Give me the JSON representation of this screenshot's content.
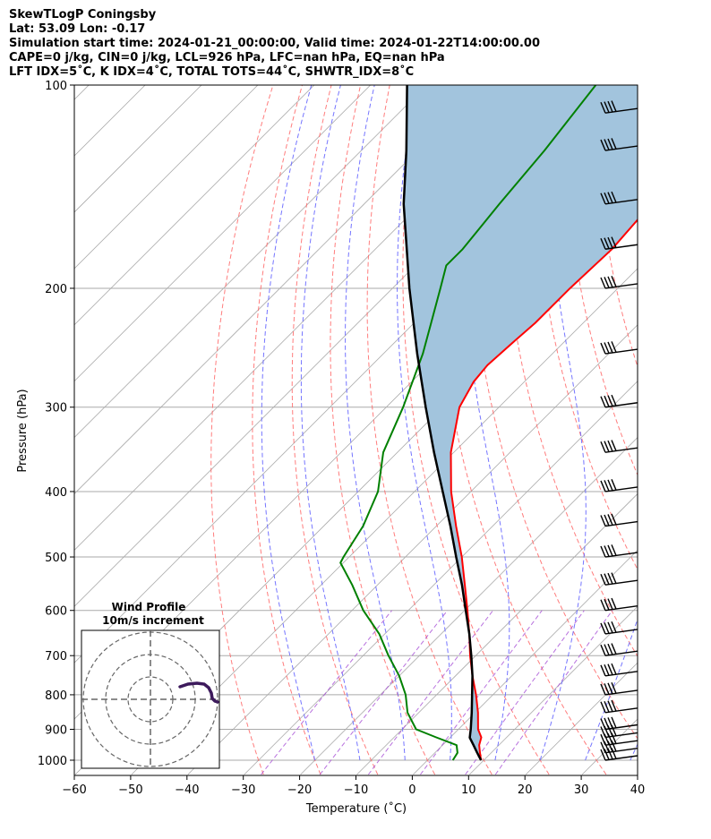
{
  "header": {
    "line1": "SkewTLogP Coningsby",
    "line2": "Lat: 53.09   Lon: -0.17",
    "line3": "Simulation start time: 2024-01-21_00:00:00, Valid time: 2024-01-22T14:00:00.00",
    "line4": "CAPE=0 j/kg, CIN=0 j/kg, LCL=926 hPa, LFC=nan hPa, EQ=nan hPa",
    "line5": "LFT IDX=5˚C, K IDX=4˚C, TOTAL TOTS=44˚C, SHWTR_IDX=8˚C"
  },
  "colors": {
    "temperature": "#ff0000",
    "dewpoint": "#008000",
    "parcel": "#000000",
    "cape_fill": "#a2c4dd",
    "dry_adiabat": "#ff6666",
    "moist_adiabat": "#6666ff",
    "mixing_ratio": "#a64dd6",
    "isotherm": "#aaaaaa",
    "hodograph": "#3d1a5c"
  },
  "chart_data": {
    "type": "skew-t log-p",
    "xlabel": "Temperature (˚C)",
    "ylabel": "Pressure (hPa)",
    "xlim": [
      -60,
      40
    ],
    "ylim": [
      1050,
      100
    ],
    "x_ticks": [
      "−60",
      "−50",
      "−40",
      "−30",
      "−20",
      "−10",
      "0",
      "10",
      "20",
      "30",
      "40"
    ],
    "y_ticks": [
      "100",
      "200",
      "300",
      "400",
      "500",
      "600",
      "700",
      "800",
      "900",
      "1000"
    ],
    "grid": true,
    "temperature_profile": [
      {
        "p": 1000,
        "t": 9.5
      },
      {
        "p": 975,
        "t": 8.0
      },
      {
        "p": 950,
        "t": 6.5
      },
      {
        "p": 925,
        "t": 5.5
      },
      {
        "p": 900,
        "t": 3.5
      },
      {
        "p": 850,
        "t": 0.5
      },
      {
        "p": 800,
        "t": -3.0
      },
      {
        "p": 750,
        "t": -7.0
      },
      {
        "p": 700,
        "t": -11.0
      },
      {
        "p": 650,
        "t": -15.0
      },
      {
        "p": 600,
        "t": -19.5
      },
      {
        "p": 550,
        "t": -24.5
      },
      {
        "p": 500,
        "t": -30.0
      },
      {
        "p": 450,
        "t": -36.5
      },
      {
        "p": 400,
        "t": -43.5
      },
      {
        "p": 350,
        "t": -50.5
      },
      {
        "p": 300,
        "t": -57.0
      },
      {
        "p": 275,
        "t": -59.0
      },
      {
        "p": 260,
        "t": -59.5
      },
      {
        "p": 240,
        "t": -59.0
      },
      {
        "p": 225,
        "t": -58.5
      },
      {
        "p": 200,
        "t": -58.5
      },
      {
        "p": 175,
        "t": -58.0
      },
      {
        "p": 150,
        "t": -59.0
      },
      {
        "p": 125,
        "t": -60.0
      },
      {
        "p": 110,
        "t": -61.0
      },
      {
        "p": 100,
        "t": -62.0
      }
    ],
    "dewpoint_profile": [
      {
        "p": 1000,
        "t": 4.5
      },
      {
        "p": 975,
        "t": 4.0
      },
      {
        "p": 950,
        "t": 2.5
      },
      {
        "p": 925,
        "t": -2.5
      },
      {
        "p": 900,
        "t": -7.5
      },
      {
        "p": 850,
        "t": -12.0
      },
      {
        "p": 800,
        "t": -15.5
      },
      {
        "p": 750,
        "t": -20.0
      },
      {
        "p": 700,
        "t": -25.5
      },
      {
        "p": 650,
        "t": -31.0
      },
      {
        "p": 600,
        "t": -38.0
      },
      {
        "p": 550,
        "t": -44.5
      },
      {
        "p": 510,
        "t": -50.5
      },
      {
        "p": 500,
        "t": -51.0
      },
      {
        "p": 450,
        "t": -53.0
      },
      {
        "p": 400,
        "t": -56.5
      },
      {
        "p": 350,
        "t": -62.5
      },
      {
        "p": 300,
        "t": -67.0
      },
      {
        "p": 250,
        "t": -73.0
      },
      {
        "p": 225,
        "t": -77.0
      },
      {
        "p": 200,
        "t": -81.5
      },
      {
        "p": 185,
        "t": -84.5
      },
      {
        "p": 175,
        "t": -84.5
      },
      {
        "p": 150,
        "t": -86.0
      },
      {
        "p": 125,
        "t": -87.5
      },
      {
        "p": 100,
        "t": -90.0
      }
    ],
    "parcel_profile": [
      {
        "p": 1000,
        "t": 9.5
      },
      {
        "p": 975,
        "t": 7.5
      },
      {
        "p": 950,
        "t": 5.5
      },
      {
        "p": 926,
        "t": 3.5
      },
      {
        "p": 900,
        "t": 2.2
      },
      {
        "p": 850,
        "t": -0.6
      },
      {
        "p": 800,
        "t": -3.7
      },
      {
        "p": 750,
        "t": -7.0
      },
      {
        "p": 700,
        "t": -10.8
      },
      {
        "p": 650,
        "t": -15.0
      },
      {
        "p": 600,
        "t": -19.8
      },
      {
        "p": 550,
        "t": -25.0
      },
      {
        "p": 500,
        "t": -31.0
      },
      {
        "p": 450,
        "t": -37.5
      },
      {
        "p": 400,
        "t": -45.0
      },
      {
        "p": 350,
        "t": -53.5
      },
      {
        "p": 300,
        "t": -63.0
      },
      {
        "p": 250,
        "t": -74.0
      },
      {
        "p": 200,
        "t": -87.0
      },
      {
        "p": 150,
        "t": -103.0
      },
      {
        "p": 125,
        "t": -112.0
      },
      {
        "p": 100,
        "t": -123.5
      }
    ],
    "wind_barb_levels": [
      1000,
      975,
      950,
      925,
      900,
      850,
      800,
      750,
      700,
      650,
      600,
      550,
      500,
      450,
      400,
      350,
      300,
      250,
      200,
      175,
      150,
      125,
      110
    ],
    "wind_profile_inset": {
      "title": "Wind Profile",
      "subtitle": "10m/s increment"
    }
  }
}
